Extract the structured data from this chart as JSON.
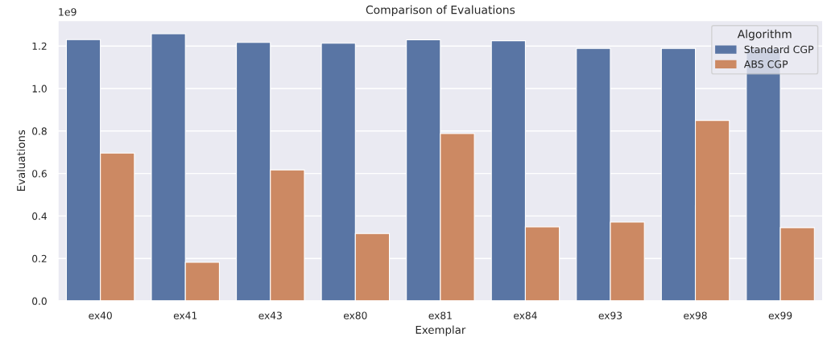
{
  "chart_data": {
    "type": "bar",
    "title": "Comparison of Evaluations",
    "xlabel": "Exemplar",
    "ylabel": "Evaluations",
    "legend_title": "Algorithm",
    "categories": [
      "ex40",
      "ex41",
      "ex43",
      "ex80",
      "ex81",
      "ex84",
      "ex93",
      "ex98",
      "ex99"
    ],
    "series": [
      {
        "name": "Standard CGP",
        "color": "#5975a4",
        "values": [
          1.23,
          1.258,
          1.217,
          1.213,
          1.229,
          1.225,
          1.189,
          1.189,
          1.189
        ]
      },
      {
        "name": "ABS CGP",
        "color": "#cc8963",
        "values": [
          0.696,
          0.182,
          0.617,
          0.317,
          0.788,
          0.349,
          0.371,
          0.85,
          0.345
        ]
      }
    ],
    "ylim": [
      0,
      1.32
    ],
    "yticks": [
      {
        "value": 0,
        "label": "0.0"
      },
      0.2,
      0.4,
      0.6,
      0.8,
      {
        "value": 1,
        "label": "1.0"
      },
      1.2
    ],
    "annotations": [
      "1e9"
    ],
    "grid": "y",
    "legend": "top right"
  }
}
